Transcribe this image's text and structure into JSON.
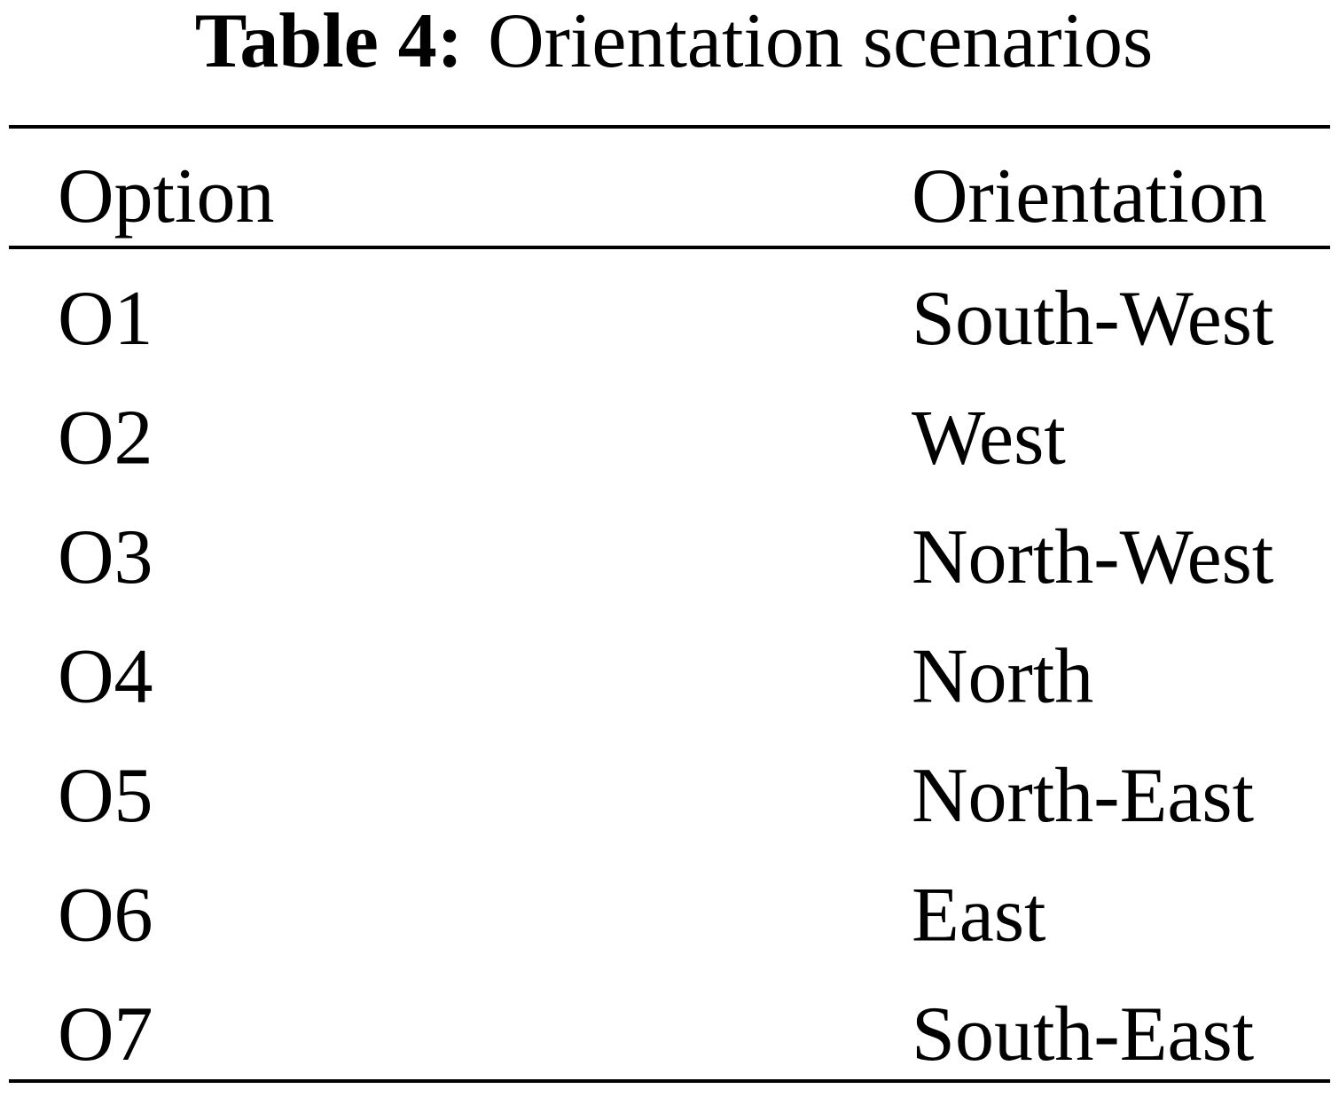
{
  "caption": {
    "label": "Table 4:",
    "text": "Orientation scenarios"
  },
  "table": {
    "header": [
      "Option",
      "Orientation"
    ],
    "rows": [
      [
        "O1",
        "South-West"
      ],
      [
        "O2",
        "West"
      ],
      [
        "O3",
        "North-West"
      ],
      [
        "O4",
        "North"
      ],
      [
        "O5",
        "North-East"
      ],
      [
        "O6",
        "East"
      ],
      [
        "O7",
        "South-East"
      ]
    ]
  }
}
